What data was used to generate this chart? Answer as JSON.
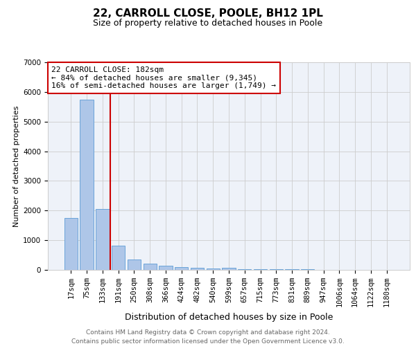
{
  "title1": "22, CARROLL CLOSE, POOLE, BH12 1PL",
  "title2": "Size of property relative to detached houses in Poole",
  "xlabel": "Distribution of detached houses by size in Poole",
  "ylabel": "Number of detached properties",
  "categories": [
    "17sqm",
    "75sqm",
    "133sqm",
    "191sqm",
    "250sqm",
    "308sqm",
    "366sqm",
    "424sqm",
    "482sqm",
    "540sqm",
    "599sqm",
    "657sqm",
    "715sqm",
    "773sqm",
    "831sqm",
    "889sqm",
    "947sqm",
    "1006sqm",
    "1064sqm",
    "1122sqm",
    "1180sqm"
  ],
  "values": [
    1750,
    5750,
    2050,
    820,
    350,
    200,
    130,
    95,
    65,
    55,
    65,
    30,
    25,
    20,
    15,
    12,
    10,
    8,
    6,
    5,
    4
  ],
  "bar_color": "#aec6e8",
  "bar_edge_color": "#5b9bd5",
  "vline_x_index": 3,
  "vline_color": "#cc0000",
  "annotation_text": "22 CARROLL CLOSE: 182sqm\n← 84% of detached houses are smaller (9,345)\n16% of semi-detached houses are larger (1,749) →",
  "annotation_box_color": "#ffffff",
  "annotation_box_edge": "#cc0000",
  "ylim": [
    0,
    7000
  ],
  "yticks": [
    0,
    1000,
    2000,
    3000,
    4000,
    5000,
    6000,
    7000
  ],
  "footer": "Contains HM Land Registry data © Crown copyright and database right 2024.\nContains public sector information licensed under the Open Government Licence v3.0.",
  "plot_bg_color": "#eef2f9",
  "grid_color": "#cccccc",
  "title1_fontsize": 11,
  "title2_fontsize": 9,
  "xlabel_fontsize": 9,
  "ylabel_fontsize": 8,
  "footer_fontsize": 6.5,
  "tick_fontsize": 7.5,
  "annot_fontsize": 8
}
